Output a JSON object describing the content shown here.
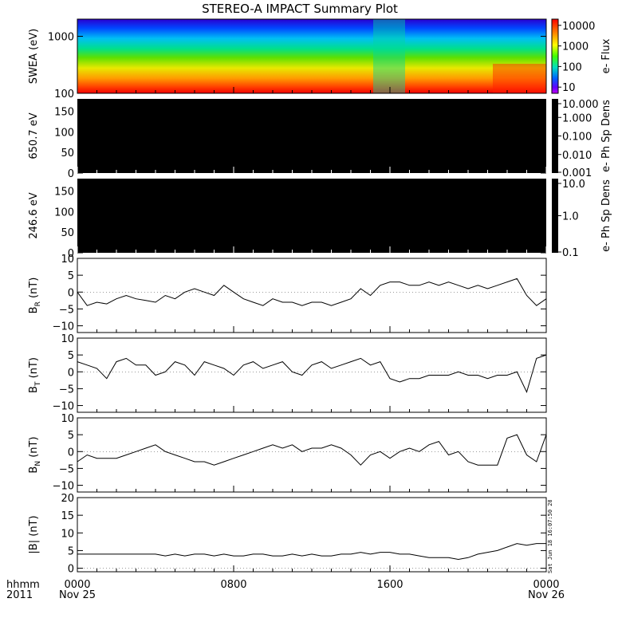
{
  "title": "STEREO-A IMPACT Summary Plot",
  "stamp": "Sat Jun 18 16:07:50 2011",
  "colors": {
    "panel_black": "#000000",
    "line": "#000000"
  },
  "time_axis": {
    "label_top": "hhmm",
    "label_bottom": "2011",
    "ticks": [
      {
        "hour": 0,
        "time": "0000",
        "date": "Nov 25"
      },
      {
        "hour": 8,
        "time": "0800",
        "date": ""
      },
      {
        "hour": 16,
        "time": "1600",
        "date": ""
      },
      {
        "hour": 24,
        "time": "0000",
        "date": "Nov 26"
      }
    ],
    "range_hours": [
      0,
      24
    ]
  },
  "chart_data": [
    {
      "panel": "swea",
      "type": "heatmap",
      "ylabel": "SWEA (eV)",
      "ylog": true,
      "ylim": [
        100,
        2000
      ],
      "yticks": [
        "1000",
        "100"
      ],
      "ytick_values": [
        1000,
        100
      ],
      "colorbar": {
        "label": "e- Flux",
        "log": true,
        "range": [
          5,
          20000
        ],
        "ticks": [
          "10000",
          "1000",
          "100",
          "10"
        ],
        "tick_values": [
          10000,
          1000,
          100,
          10
        ]
      }
    },
    {
      "panel": "pad650",
      "type": "heatmap",
      "ylabel": "650.7 eV",
      "ylim": [
        0,
        180
      ],
      "yticks": [
        "150",
        "100",
        "50",
        "0"
      ],
      "ytick_values": [
        150,
        100,
        50,
        0
      ],
      "colorbar": {
        "label": "e- Ph Sp Dens",
        "log": true,
        "range": [
          0.001,
          10
        ],
        "ticks": [
          "10.000",
          "1.000",
          "0.100",
          "0.010",
          "0.001"
        ],
        "tick_values": [
          10,
          1,
          0.1,
          0.01,
          0.001
        ]
      }
    },
    {
      "panel": "pad246",
      "type": "heatmap",
      "ylabel": "246.6 eV",
      "ylim": [
        0,
        180
      ],
      "yticks": [
        "150",
        "100",
        "50",
        "0"
      ],
      "ytick_values": [
        150,
        100,
        50,
        0
      ],
      "colorbar": {
        "label": "e- Ph Sp Dens",
        "log": true,
        "range": [
          0.1,
          10
        ],
        "ticks": [
          "10.0",
          "1.0",
          "0.1"
        ],
        "tick_values": [
          10,
          1,
          0.1
        ]
      }
    },
    {
      "panel": "br",
      "type": "line",
      "ylabel": "B",
      "ysub": "R",
      "yunit": "(nT)",
      "ylim": [
        -12,
        10
      ],
      "yticks": [
        "10",
        "5",
        "0",
        "−5",
        "−10"
      ],
      "ytick_values": [
        10,
        5,
        0,
        -5,
        -10
      ],
      "x": [
        0,
        0.5,
        1,
        1.5,
        2,
        2.5,
        3,
        3.5,
        4,
        4.5,
        5,
        5.5,
        6,
        6.5,
        7,
        7.5,
        8,
        8.5,
        9,
        9.5,
        10,
        10.5,
        11,
        11.5,
        12,
        12.5,
        13,
        13.5,
        14,
        14.5,
        15,
        15.5,
        16,
        16.5,
        17,
        17.5,
        18,
        18.5,
        19,
        19.5,
        20,
        20.5,
        21,
        21.5,
        22,
        22.5,
        23,
        23.5,
        24
      ],
      "y": [
        0,
        -4,
        -3,
        -3.5,
        -2,
        -1,
        -2,
        -2.5,
        -3,
        -1,
        -2,
        0,
        1,
        0,
        -1,
        2,
        0,
        -2,
        -3,
        -4,
        -2,
        -3,
        -3,
        -4,
        -3,
        -3,
        -4,
        -3,
        -2,
        1,
        -1,
        2,
        3,
        3,
        2,
        2,
        3,
        2,
        3,
        2,
        1,
        2,
        1,
        2,
        3,
        4,
        -1,
        -4,
        -2
      ]
    },
    {
      "panel": "bt",
      "type": "line",
      "ylabel": "B",
      "ysub": "T",
      "yunit": "(nT)",
      "ylim": [
        -12,
        10
      ],
      "yticks": [
        "10",
        "5",
        "0",
        "−5",
        "−10"
      ],
      "ytick_values": [
        10,
        5,
        0,
        -5,
        -10
      ],
      "x": [
        0,
        0.5,
        1,
        1.5,
        2,
        2.5,
        3,
        3.5,
        4,
        4.5,
        5,
        5.5,
        6,
        6.5,
        7,
        7.5,
        8,
        8.5,
        9,
        9.5,
        10,
        10.5,
        11,
        11.5,
        12,
        12.5,
        13,
        13.5,
        14,
        14.5,
        15,
        15.5,
        16,
        16.5,
        17,
        17.5,
        18,
        18.5,
        19,
        19.5,
        20,
        20.5,
        21,
        21.5,
        22,
        22.5,
        23,
        23.5,
        24
      ],
      "y": [
        3,
        2,
        1,
        -2,
        3,
        4,
        2,
        2,
        -1,
        0,
        3,
        2,
        -1,
        3,
        2,
        1,
        -1,
        2,
        3,
        1,
        2,
        3,
        0,
        -1,
        2,
        3,
        1,
        2,
        3,
        4,
        2,
        3,
        -2,
        -3,
        -2,
        -2,
        -1,
        -1,
        -1,
        0,
        -1,
        -1,
        -2,
        -1,
        -1,
        0,
        -6,
        4,
        5
      ]
    },
    {
      "panel": "bn",
      "type": "line",
      "ylabel": "B",
      "ysub": "N",
      "yunit": "(nT)",
      "ylim": [
        -12,
        10
      ],
      "yticks": [
        "10",
        "5",
        "0",
        "−5",
        "−10"
      ],
      "ytick_values": [
        10,
        5,
        0,
        -5,
        -10
      ],
      "x": [
        0,
        0.5,
        1,
        1.5,
        2,
        2.5,
        3,
        3.5,
        4,
        4.5,
        5,
        5.5,
        6,
        6.5,
        7,
        7.5,
        8,
        8.5,
        9,
        9.5,
        10,
        10.5,
        11,
        11.5,
        12,
        12.5,
        13,
        13.5,
        14,
        14.5,
        15,
        15.5,
        16,
        16.5,
        17,
        17.5,
        18,
        18.5,
        19,
        19.5,
        20,
        20.5,
        21,
        21.5,
        22,
        22.5,
        23,
        23.5,
        24
      ],
      "y": [
        -3,
        -1,
        -2,
        -2,
        -2,
        -1,
        0,
        1,
        2,
        0,
        -1,
        -2,
        -3,
        -3,
        -4,
        -3,
        -2,
        -1,
        0,
        1,
        2,
        1,
        2,
        0,
        1,
        1,
        2,
        1,
        -1,
        -4,
        -1,
        0,
        -2,
        0,
        1,
        0,
        2,
        3,
        -1,
        0,
        -3,
        -4,
        -4,
        -4,
        4,
        5,
        -1,
        -3,
        5
      ]
    },
    {
      "panel": "btot",
      "type": "line",
      "ylabel": "|B|",
      "ysub": "",
      "yunit": "(nT)",
      "ylim": [
        -1,
        20
      ],
      "yticks": [
        "20",
        "15",
        "10",
        "5",
        "0"
      ],
      "ytick_values": [
        20,
        15,
        10,
        5,
        0
      ],
      "x": [
        0,
        0.5,
        1,
        1.5,
        2,
        2.5,
        3,
        3.5,
        4,
        4.5,
        5,
        5.5,
        6,
        6.5,
        7,
        7.5,
        8,
        8.5,
        9,
        9.5,
        10,
        10.5,
        11,
        11.5,
        12,
        12.5,
        13,
        13.5,
        14,
        14.5,
        15,
        15.5,
        16,
        16.5,
        17,
        17.5,
        18,
        18.5,
        19,
        19.5,
        20,
        20.5,
        21,
        21.5,
        22,
        22.5,
        23,
        23.5,
        24
      ],
      "y": [
        4,
        4,
        4,
        4,
        4,
        4,
        4,
        4,
        4,
        3.5,
        4,
        3.5,
        4,
        4,
        3.5,
        4,
        3.5,
        3.5,
        4,
        4,
        3.5,
        3.5,
        4,
        3.5,
        4,
        3.5,
        3.5,
        4,
        4,
        4.5,
        4,
        4.5,
        4.5,
        4,
        4,
        3.5,
        3,
        3,
        3,
        2.5,
        3,
        4,
        4.5,
        5,
        6,
        7,
        6.5,
        7,
        7
      ]
    }
  ]
}
